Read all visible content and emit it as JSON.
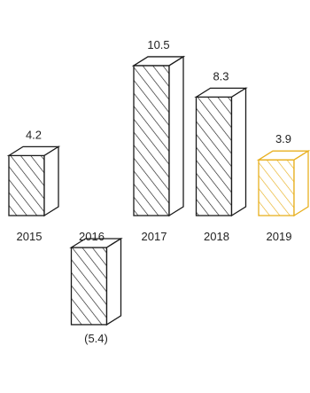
{
  "chart_data": {
    "type": "bar",
    "categories": [
      "2015",
      "2016",
      "2017",
      "2018",
      "2019"
    ],
    "values": [
      4.2,
      -5.4,
      10.5,
      8.3,
      3.9
    ],
    "value_labels": [
      "4.2",
      "(5.4)",
      "10.5",
      "8.3",
      "3.9"
    ],
    "title": "",
    "xlabel": "",
    "ylabel": "",
    "grid": false,
    "style": "hand-drawn 3D hatched bars",
    "colors": {
      "default": "#1a1a1a",
      "highlight": "#e8b020"
    },
    "highlight_category": "2019"
  }
}
